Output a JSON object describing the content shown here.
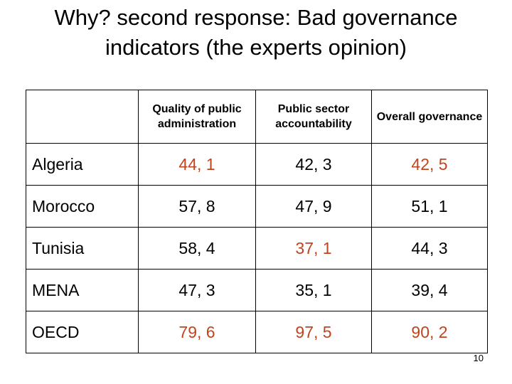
{
  "title": "Why? second response: Bad governance indicators (the experts opinion)",
  "table": {
    "headers": [
      "",
      "Quality of public administration",
      "Public sector accountability",
      "Overall governance"
    ],
    "rows": [
      {
        "country": "Algeria",
        "values": [
          "44, 1",
          "42, 3",
          "42, 5"
        ],
        "highlight": [
          true,
          false,
          true
        ]
      },
      {
        "country": "Morocco",
        "values": [
          "57, 8",
          "47, 9",
          "51, 1"
        ],
        "highlight": [
          false,
          false,
          false
        ]
      },
      {
        "country": "Tunisia",
        "values": [
          "58, 4",
          "37, 1",
          "44, 3"
        ],
        "highlight": [
          false,
          true,
          false
        ]
      },
      {
        "country": "MENA",
        "values": [
          "47, 3",
          "35, 1",
          "39, 4"
        ],
        "highlight": [
          false,
          false,
          false
        ]
      },
      {
        "country": "OECD",
        "values": [
          "79, 6",
          "97, 5",
          "90, 2"
        ],
        "highlight": [
          true,
          true,
          true
        ]
      }
    ],
    "highlight_color": "#c0441e"
  },
  "page_number": "10"
}
